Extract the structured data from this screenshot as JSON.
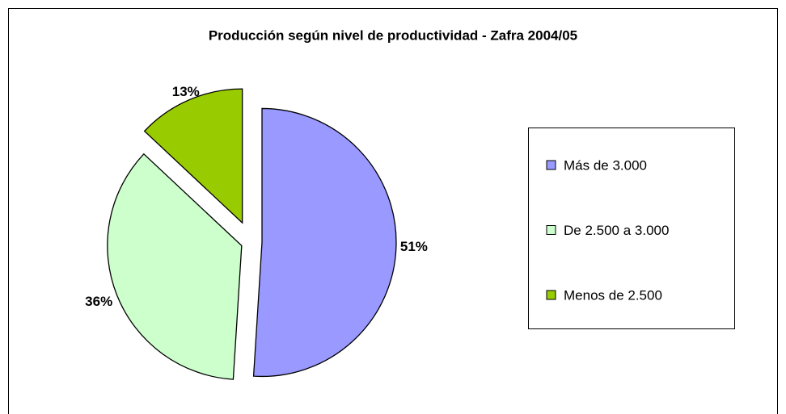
{
  "chart_data": {
    "type": "pie",
    "title": "Producción según nivel de productividad - Zafra 2004/05",
    "categories": [
      "Más de 3.000",
      "De 2.500 a 3.000",
      "Menos de 2.500"
    ],
    "values": [
      51,
      36,
      13
    ],
    "value_labels": [
      "51%",
      "36%",
      "13%"
    ],
    "colors": [
      "#9999ff",
      "#ccffcc",
      "#99cc00"
    ],
    "legend": "right"
  }
}
